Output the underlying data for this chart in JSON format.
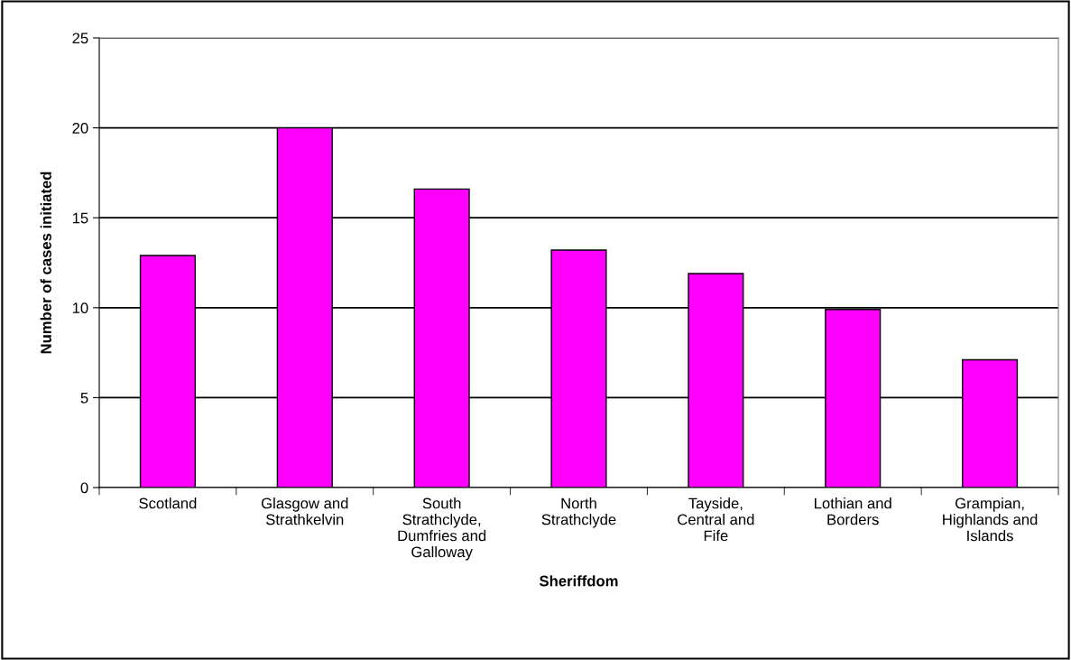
{
  "chart_data": {
    "type": "bar",
    "xlabel": "Sheriffdom",
    "ylabel": "Number of cases initiated",
    "categories": [
      "Scotland",
      "Glasgow and\nStrathkelvin",
      "South\nStrathclyde,\nDumfries and\nGalloway",
      "North\nStrathclyde",
      "Tayside,\nCentral and\nFife",
      "Lothian and\nBorders",
      "Grampian,\nHighlands and\nIslands"
    ],
    "values": [
      12.9,
      20.0,
      16.6,
      13.2,
      11.9,
      9.9,
      7.1
    ],
    "color": "#ff00ff",
    "ylim": [
      0,
      25
    ],
    "yticks": [
      0,
      5,
      10,
      15,
      20,
      25
    ],
    "grid": "y",
    "legend": false
  }
}
